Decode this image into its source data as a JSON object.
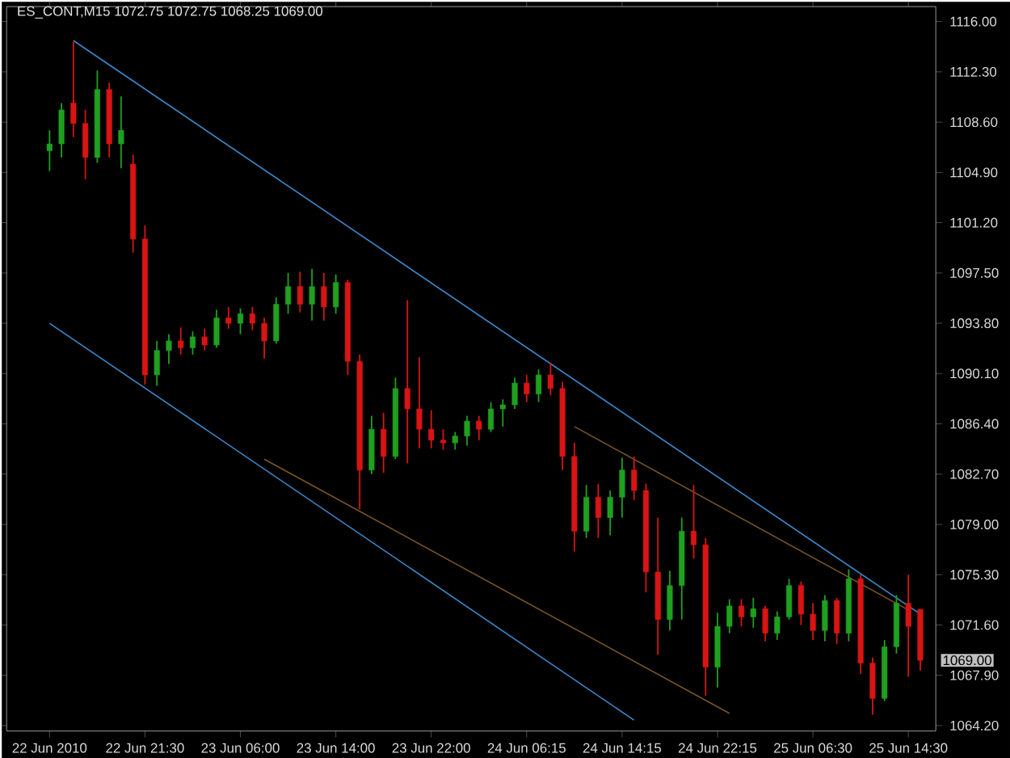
{
  "chart_data": {
    "type": "candlestick",
    "title": "ES_CONT,M15 1072.75 1072.75 1068.25 1069.00",
    "categories": [
      "22 Jun 2010",
      null,
      null,
      null,
      null,
      null,
      null,
      null,
      "22 Jun 21:30",
      null,
      null,
      null,
      null,
      null,
      null,
      null,
      "23 Jun 06:00",
      null,
      null,
      null,
      null,
      null,
      null,
      null,
      "23 Jun 14:00",
      null,
      null,
      null,
      null,
      null,
      null,
      null,
      "23 Jun 22:00",
      null,
      null,
      null,
      null,
      null,
      null,
      null,
      "24 Jun 06:15",
      null,
      null,
      null,
      null,
      null,
      null,
      null,
      "24 Jun 14:15",
      null,
      null,
      null,
      null,
      null,
      null,
      null,
      "24 Jun 22:15",
      null,
      null,
      null,
      null,
      null,
      null,
      null,
      "25 Jun 06:30",
      null,
      null,
      null,
      null,
      null,
      null,
      null,
      "25 Jun 14:30",
      null
    ],
    "ohlc": [
      [
        1106.5,
        1108,
        1105,
        1107
      ],
      [
        1107,
        1110,
        1106,
        1109.5
      ],
      [
        1110,
        1114.5,
        1107.5,
        1108.5
      ],
      [
        1108.5,
        1109.5,
        1104.4,
        1106
      ],
      [
        1106,
        1112.4,
        1105.6,
        1111
      ],
      [
        1111,
        1111.5,
        1106,
        1107
      ],
      [
        1107,
        1110.5,
        1105.2,
        1108
      ],
      [
        1105.5,
        1106.2,
        1099,
        1100
      ],
      [
        1100,
        1101,
        1089.3,
        1090
      ],
      [
        1090,
        1092.5,
        1089.2,
        1091.8
      ],
      [
        1091.8,
        1093,
        1090.8,
        1092.5
      ],
      [
        1092.5,
        1093.5,
        1091.5,
        1092
      ],
      [
        1092,
        1093.2,
        1091.5,
        1092.8
      ],
      [
        1092.8,
        1093.4,
        1091.8,
        1092.2
      ],
      [
        1092.2,
        1094.8,
        1092,
        1094.2
      ],
      [
        1094.2,
        1095,
        1093.4,
        1093.8
      ],
      [
        1093.8,
        1094.9,
        1093,
        1094.5
      ],
      [
        1094.5,
        1095,
        1093.3,
        1093.8
      ],
      [
        1093.8,
        1094.2,
        1091.2,
        1092.5
      ],
      [
        1092.5,
        1095.7,
        1092.3,
        1095.2
      ],
      [
        1095.2,
        1097.5,
        1094.5,
        1096.5
      ],
      [
        1096.5,
        1097.6,
        1094.6,
        1095.2
      ],
      [
        1095.2,
        1097.8,
        1094,
        1096.5
      ],
      [
        1096.5,
        1097.5,
        1094,
        1095
      ],
      [
        1095,
        1097.4,
        1094.5,
        1096.8
      ],
      [
        1096.8,
        1097,
        1090,
        1091
      ],
      [
        1091,
        1091.5,
        1080.1,
        1083
      ],
      [
        1083,
        1087,
        1082.7,
        1086
      ],
      [
        1086,
        1087.2,
        1082.8,
        1084
      ],
      [
        1084,
        1089.8,
        1083.8,
        1089
      ],
      [
        1089,
        1095.5,
        1083.5,
        1087.5
      ],
      [
        1087.5,
        1091.3,
        1084.6,
        1086
      ],
      [
        1086,
        1087.4,
        1084.6,
        1085.2
      ],
      [
        1085.2,
        1086,
        1084.5,
        1085
      ],
      [
        1085,
        1085.8,
        1084.5,
        1085.5
      ],
      [
        1085.5,
        1087,
        1084.8,
        1086.6
      ],
      [
        1086.6,
        1087,
        1085.2,
        1086
      ],
      [
        1086,
        1088,
        1085.8,
        1087.5
      ],
      [
        1087.5,
        1088.2,
        1086.2,
        1087.8
      ],
      [
        1087.8,
        1089.8,
        1087.5,
        1089.4
      ],
      [
        1089.4,
        1090,
        1088,
        1088.6
      ],
      [
        1088.6,
        1090.4,
        1088,
        1090
      ],
      [
        1090,
        1090.9,
        1088.5,
        1089
      ],
      [
        1089,
        1089.5,
        1083,
        1084
      ],
      [
        1084,
        1085,
        1077,
        1078.5
      ],
      [
        1078.5,
        1081.9,
        1078,
        1081
      ],
      [
        1081,
        1082,
        1078,
        1079.5
      ],
      [
        1079.5,
        1081.5,
        1078.2,
        1081
      ],
      [
        1081,
        1083.9,
        1079.5,
        1083
      ],
      [
        1083,
        1084,
        1080.8,
        1081.5
      ],
      [
        1081.5,
        1082,
        1074,
        1075.5
      ],
      [
        1075.5,
        1079.5,
        1069.4,
        1072
      ],
      [
        1072,
        1075.6,
        1071.2,
        1074.5
      ],
      [
        1074.5,
        1079.5,
        1072,
        1078.5
      ],
      [
        1078.5,
        1081.9,
        1076.5,
        1077.5
      ],
      [
        1077.5,
        1078,
        1066.4,
        1068.5
      ],
      [
        1068.5,
        1072.5,
        1067,
        1071.5
      ],
      [
        1071.5,
        1073.5,
        1071,
        1073
      ],
      [
        1073,
        1073.5,
        1071.5,
        1072.2
      ],
      [
        1072.2,
        1073.6,
        1071.4,
        1072.8
      ],
      [
        1072.8,
        1073,
        1070.4,
        1071
      ],
      [
        1071,
        1072.6,
        1070.5,
        1072.2
      ],
      [
        1072.2,
        1075,
        1072,
        1074.5
      ],
      [
        1074.5,
        1074.8,
        1071.6,
        1072.4
      ],
      [
        1072.4,
        1073.2,
        1070.5,
        1071.2
      ],
      [
        1071.2,
        1073.8,
        1070.4,
        1073.4
      ],
      [
        1073.4,
        1073.6,
        1070.2,
        1071
      ],
      [
        1071,
        1075.7,
        1070.4,
        1075
      ],
      [
        1075,
        1075.3,
        1068,
        1068.8
      ],
      [
        1068.8,
        1069.2,
        1065,
        1066.2
      ],
      [
        1066.2,
        1070.5,
        1066,
        1070
      ],
      [
        1070,
        1073.8,
        1069.5,
        1073.2
      ],
      [
        1073.2,
        1075.3,
        1067.8,
        1071.5
      ],
      [
        1072.75,
        1072.75,
        1068.25,
        1069
      ]
    ],
    "colors": [
      "#1fa01f",
      "#1fa01f",
      "#d81414",
      "#d81414",
      "#1fa01f",
      "#d81414",
      "#1fa01f",
      "#d81414",
      "#d81414",
      "#1fa01f",
      "#1fa01f",
      "#d81414",
      "#1fa01f",
      "#d81414",
      "#1fa01f",
      "#d81414",
      "#1fa01f",
      "#d81414",
      "#d81414",
      "#1fa01f",
      "#1fa01f",
      "#d81414",
      "#1fa01f",
      "#d81414",
      "#1fa01f",
      "#d81414",
      "#d81414",
      "#1fa01f",
      "#d81414",
      "#1fa01f",
      "#d81414",
      "#d81414",
      "#d81414",
      "#d81414",
      "#1fa01f",
      "#1fa01f",
      "#d81414",
      "#1fa01f",
      "#1fa01f",
      "#1fa01f",
      "#d81414",
      "#1fa01f",
      "#d81414",
      "#d81414",
      "#d81414",
      "#1fa01f",
      "#d81414",
      "#1fa01f",
      "#1fa01f",
      "#d81414",
      "#d81414",
      "#d81414",
      "#1fa01f",
      "#1fa01f",
      "#d81414",
      "#d81414",
      "#1fa01f",
      "#1fa01f",
      "#d81414",
      "#1fa01f",
      "#d81414",
      "#1fa01f",
      "#1fa01f",
      "#d81414",
      "#d81414",
      "#1fa01f",
      "#d81414",
      "#1fa01f",
      "#d81414",
      "#d81414",
      "#1fa01f",
      "#1fa01f",
      "#d81414",
      "#d81414"
    ],
    "series": [
      {
        "type": "line",
        "color": "#3d88cc",
        "values": [
          null,
          null,
          1114.6,
          null,
          null,
          null,
          null,
          null,
          null,
          null,
          null,
          null,
          null,
          null,
          null,
          null,
          null,
          null,
          null,
          null,
          null,
          null,
          null,
          null,
          null,
          null,
          null,
          null,
          null,
          null,
          null,
          null,
          null,
          null,
          null,
          null,
          null,
          null,
          null,
          null,
          null,
          null,
          null,
          null,
          null,
          null,
          null,
          null,
          null,
          null,
          null,
          null,
          null,
          null,
          null,
          null,
          null,
          null,
          null,
          null,
          null,
          null,
          null,
          null,
          null,
          null,
          null,
          null,
          null,
          null,
          null,
          null,
          null,
          1072.4
        ]
      },
      {
        "type": "line",
        "color": "#3d88cc",
        "values": [
          1093.8,
          null,
          null,
          null,
          null,
          null,
          null,
          null,
          null,
          null,
          null,
          null,
          null,
          null,
          null,
          null,
          null,
          null,
          null,
          null,
          null,
          null,
          null,
          null,
          null,
          null,
          null,
          null,
          null,
          null,
          null,
          null,
          null,
          null,
          null,
          null,
          null,
          null,
          null,
          null,
          null,
          null,
          null,
          null,
          null,
          null,
          null,
          null,
          null,
          1064.6,
          null,
          null,
          null,
          null,
          null,
          null,
          null,
          null,
          null,
          null,
          null,
          null,
          null,
          null,
          null,
          null,
          null,
          null,
          null,
          null,
          null,
          null,
          null,
          null
        ]
      },
      {
        "type": "line",
        "color": "#7a5526",
        "values": [
          null,
          null,
          null,
          null,
          null,
          null,
          null,
          null,
          null,
          null,
          null,
          null,
          null,
          null,
          null,
          null,
          null,
          null,
          1083.8,
          null,
          null,
          null,
          null,
          null,
          null,
          null,
          null,
          null,
          null,
          null,
          null,
          null,
          null,
          null,
          null,
          null,
          null,
          null,
          null,
          null,
          null,
          null,
          null,
          null,
          null,
          null,
          null,
          null,
          null,
          null,
          null,
          null,
          null,
          null,
          null,
          null,
          null,
          1065.1,
          null,
          null,
          null,
          null,
          null,
          null,
          null,
          null,
          null,
          null,
          null,
          null,
          null,
          null,
          null,
          null
        ]
      },
      {
        "type": "line",
        "color": "#7a5526",
        "values": [
          null,
          null,
          null,
          null,
          null,
          null,
          null,
          null,
          null,
          null,
          null,
          null,
          null,
          null,
          null,
          null,
          null,
          null,
          null,
          null,
          null,
          null,
          null,
          null,
          null,
          null,
          null,
          null,
          null,
          null,
          null,
          null,
          null,
          null,
          null,
          null,
          null,
          null,
          null,
          null,
          null,
          null,
          null,
          null,
          1086.2,
          null,
          null,
          null,
          null,
          null,
          null,
          null,
          null,
          null,
          null,
          null,
          null,
          null,
          null,
          null,
          null,
          null,
          null,
          null,
          null,
          null,
          null,
          null,
          null,
          null,
          null,
          null,
          1072.7,
          null
        ]
      }
    ],
    "ylim": [
      1063.8,
      1117.1
    ],
    "yticks": [
      {
        "value": 1116,
        "label": "1116.00"
      },
      {
        "value": 1112.3,
        "label": "1112.30"
      },
      {
        "value": 1108.6,
        "label": "1108.60"
      },
      {
        "value": 1104.9,
        "label": "1104.90"
      },
      {
        "value": 1101.2,
        "label": "1101.20"
      },
      {
        "value": 1097.5,
        "label": "1097.50"
      },
      {
        "value": 1093.8,
        "label": "1093.80"
      },
      {
        "value": 1090.1,
        "label": "1090.10"
      },
      {
        "value": 1086.4,
        "label": "1086.40"
      },
      {
        "value": 1082.7,
        "label": "1082.70"
      },
      {
        "value": 1079,
        "label": "1079.00"
      },
      {
        "value": 1075.3,
        "label": "1075.30"
      },
      {
        "value": 1071.6,
        "label": "1071.60"
      },
      {
        "value": 1067.9,
        "label": "1067.90"
      },
      {
        "value": 1064.2,
        "label": "1064.20"
      }
    ],
    "annotations": [
      "1069.00"
    ],
    "grid": false
  }
}
